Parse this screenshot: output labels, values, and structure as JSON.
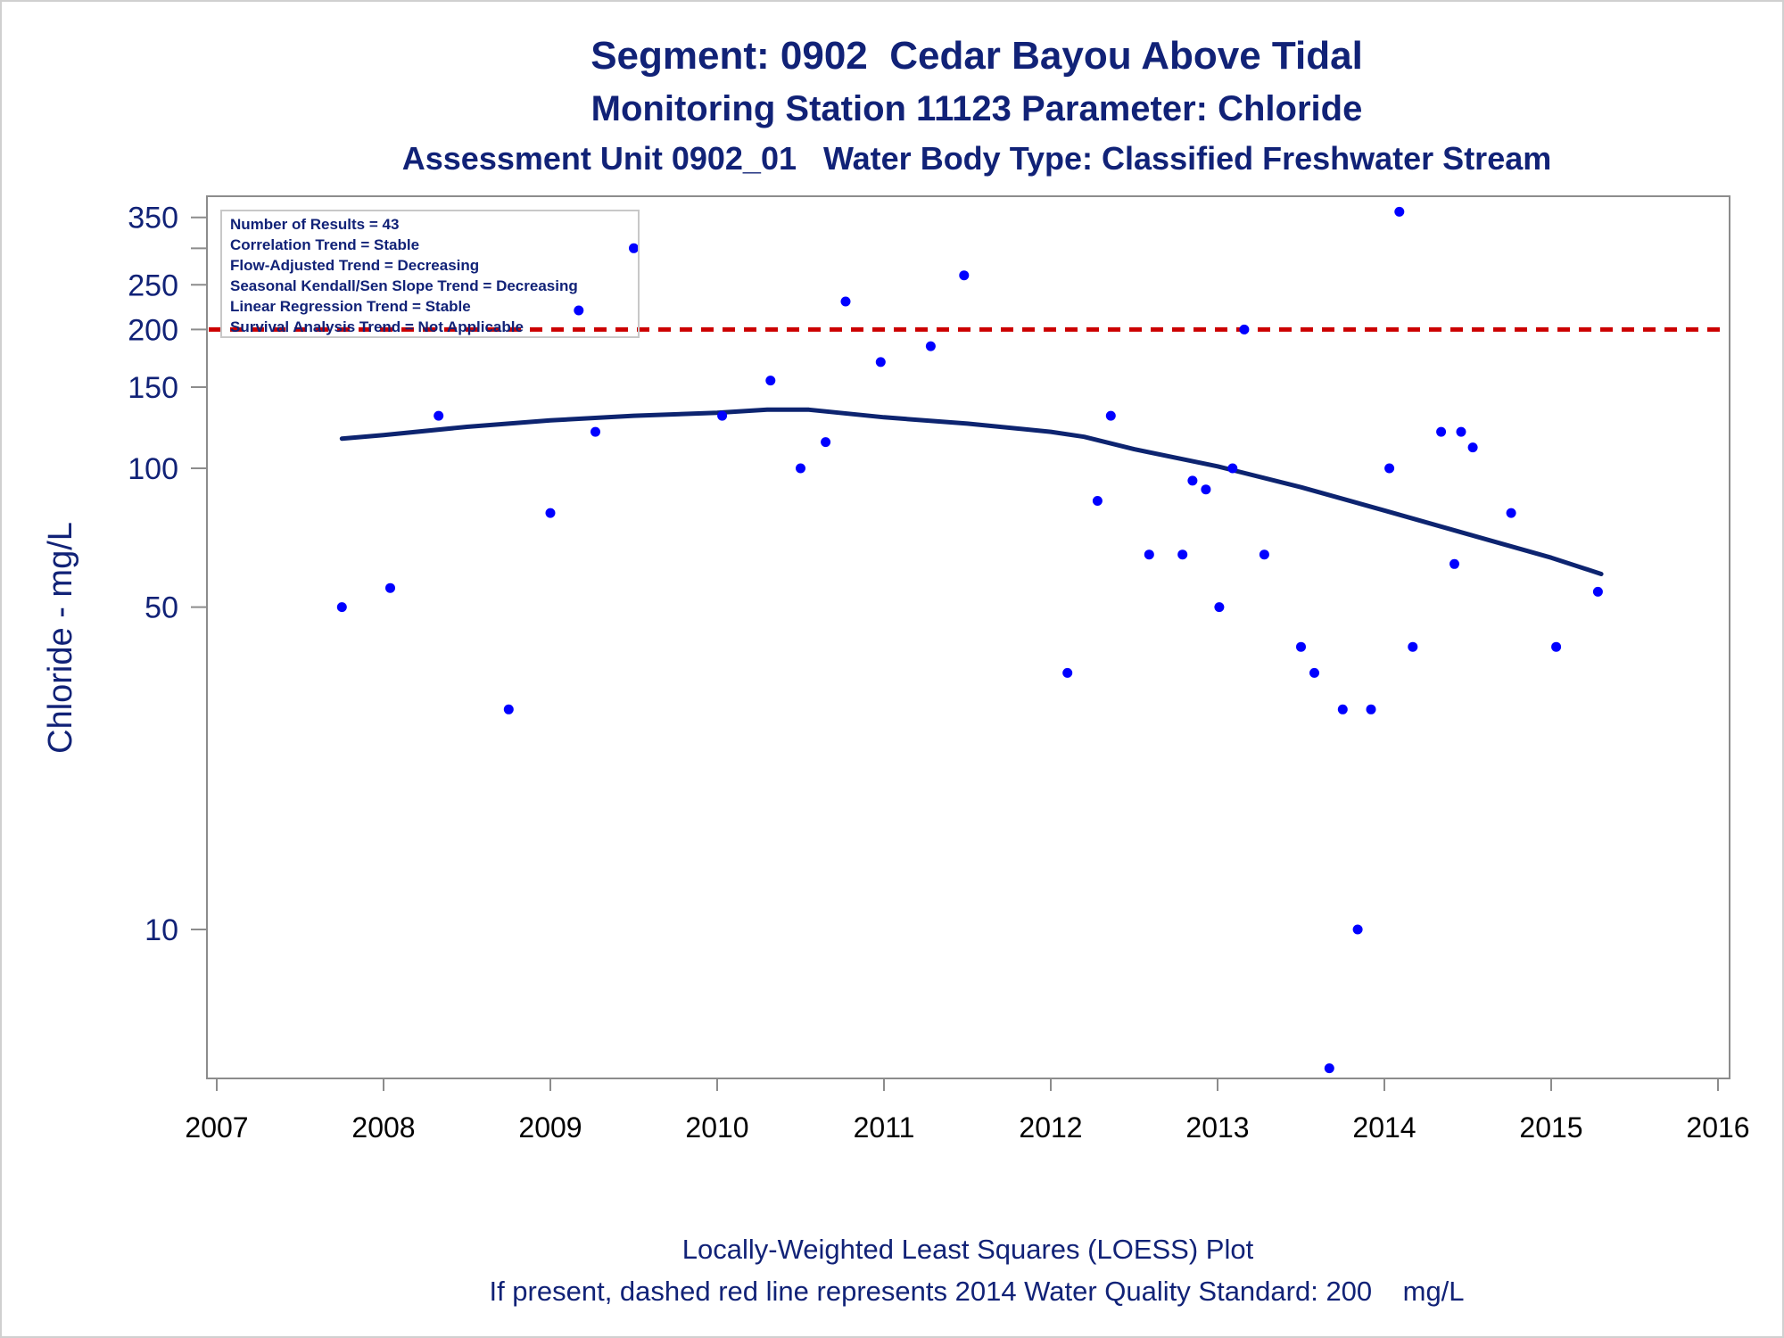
{
  "header": {
    "title": "Segment: 0902  Cedar Bayou Above Tidal",
    "subtitle": "Monitoring Station 11123 Parameter: Chloride",
    "subtitle2": "Assessment Unit 0902_01   Water Body Type: Classified Freshwater Stream"
  },
  "footer": {
    "line1": "Locally-Weighted Least Squares (LOESS) Plot",
    "line2": "If present, dashed red line represents 2014 Water Quality Standard: 200    mg/L"
  },
  "stats": [
    "Number of Results = 43",
    "Correlation Trend = Stable",
    "Flow-Adjusted Trend = Decreasing",
    "Seasonal Kendall/Sen Slope Trend = Decreasing",
    "Linear Regression Trend = Stable",
    "Survival Analysis Trend = Not Applicable"
  ],
  "chart_data": {
    "type": "scatter",
    "title": "Segment: 0902  Cedar Bayou Above Tidal",
    "xlabel": "",
    "ylabel": "Chloride - mg/L",
    "y_scale": "log",
    "xlim": [
      2007,
      2016
    ],
    "ylim": [
      5,
      380
    ],
    "x_ticks": [
      2007,
      2008,
      2009,
      2010,
      2011,
      2012,
      2013,
      2014,
      2015,
      2016
    ],
    "y_ticks": [
      10,
      50,
      100,
      150,
      200,
      250,
      350
    ],
    "y_minor_ticks": [
      300
    ],
    "colors": {
      "points": "#0000ff",
      "loess": "#0d2470",
      "standard": "#cc0000",
      "text": "#112277"
    },
    "standard_line": {
      "value": 200,
      "label": "2014 Water Quality Standard"
    },
    "points": [
      {
        "x": 2007.75,
        "y": 50
      },
      {
        "x": 2008.04,
        "y": 55
      },
      {
        "x": 2008.33,
        "y": 130
      },
      {
        "x": 2008.75,
        "y": 30
      },
      {
        "x": 2009.0,
        "y": 80
      },
      {
        "x": 2009.17,
        "y": 220
      },
      {
        "x": 2009.27,
        "y": 120
      },
      {
        "x": 2009.5,
        "y": 300
      },
      {
        "x": 2010.03,
        "y": 130
      },
      {
        "x": 2010.32,
        "y": 155
      },
      {
        "x": 2010.5,
        "y": 100
      },
      {
        "x": 2010.65,
        "y": 114
      },
      {
        "x": 2010.77,
        "y": 230
      },
      {
        "x": 2010.98,
        "y": 170
      },
      {
        "x": 2011.28,
        "y": 184
      },
      {
        "x": 2011.48,
        "y": 262
      },
      {
        "x": 2012.1,
        "y": 36
      },
      {
        "x": 2012.28,
        "y": 85
      },
      {
        "x": 2012.36,
        "y": 130
      },
      {
        "x": 2012.59,
        "y": 65
      },
      {
        "x": 2012.79,
        "y": 65
      },
      {
        "x": 2012.85,
        "y": 94
      },
      {
        "x": 2012.93,
        "y": 90
      },
      {
        "x": 2013.01,
        "y": 50
      },
      {
        "x": 2013.09,
        "y": 100
      },
      {
        "x": 2013.16,
        "y": 200
      },
      {
        "x": 2013.28,
        "y": 65
      },
      {
        "x": 2013.5,
        "y": 41
      },
      {
        "x": 2013.58,
        "y": 36
      },
      {
        "x": 2013.67,
        "y": 5
      },
      {
        "x": 2013.75,
        "y": 30
      },
      {
        "x": 2013.84,
        "y": 10
      },
      {
        "x": 2013.92,
        "y": 30
      },
      {
        "x": 2014.03,
        "y": 100
      },
      {
        "x": 2014.09,
        "y": 360
      },
      {
        "x": 2014.17,
        "y": 41
      },
      {
        "x": 2014.34,
        "y": 120
      },
      {
        "x": 2014.42,
        "y": 62
      },
      {
        "x": 2014.46,
        "y": 120
      },
      {
        "x": 2014.53,
        "y": 111
      },
      {
        "x": 2014.76,
        "y": 80
      },
      {
        "x": 2015.03,
        "y": 41
      },
      {
        "x": 2015.28,
        "y": 54
      }
    ],
    "loess": [
      {
        "x": 2007.75,
        "y": 116
      },
      {
        "x": 2008.0,
        "y": 118
      },
      {
        "x": 2008.5,
        "y": 123
      },
      {
        "x": 2009.0,
        "y": 127
      },
      {
        "x": 2009.5,
        "y": 130
      },
      {
        "x": 2010.0,
        "y": 132
      },
      {
        "x": 2010.3,
        "y": 134
      },
      {
        "x": 2010.55,
        "y": 134
      },
      {
        "x": 2011.0,
        "y": 129
      },
      {
        "x": 2011.5,
        "y": 125
      },
      {
        "x": 2012.0,
        "y": 120
      },
      {
        "x": 2012.2,
        "y": 117
      },
      {
        "x": 2012.5,
        "y": 110
      },
      {
        "x": 2013.0,
        "y": 101
      },
      {
        "x": 2013.5,
        "y": 91
      },
      {
        "x": 2014.0,
        "y": 81
      },
      {
        "x": 2014.5,
        "y": 72
      },
      {
        "x": 2015.0,
        "y": 64
      },
      {
        "x": 2015.3,
        "y": 59
      }
    ]
  }
}
